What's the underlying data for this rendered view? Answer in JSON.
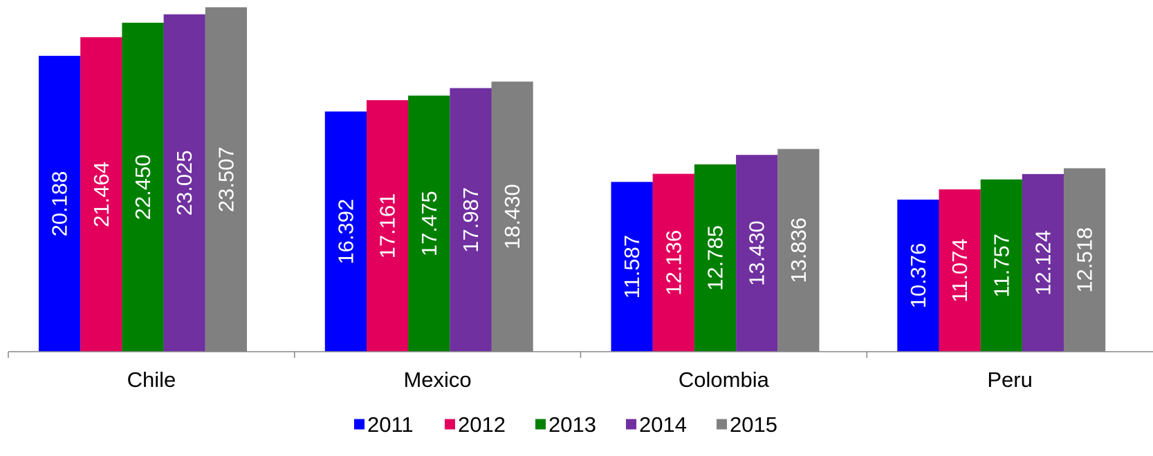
{
  "chart_data": {
    "type": "bar",
    "categories": [
      "Chile",
      "Mexico",
      "Colombia",
      "Peru"
    ],
    "series": [
      {
        "name": "2011",
        "color": "#0000ff",
        "values": [
          20.188,
          16.392,
          11.587,
          10.376
        ],
        "labels": [
          "20.188",
          "16.392",
          "11.587",
          "10.376"
        ]
      },
      {
        "name": "2012",
        "color": "#e3005c",
        "values": [
          21.464,
          17.161,
          12.136,
          11.074
        ],
        "labels": [
          "21.464",
          "17.161",
          "12.136",
          "11.074"
        ]
      },
      {
        "name": "2013",
        "color": "#008000",
        "values": [
          22.45,
          17.475,
          12.785,
          11.757
        ],
        "labels": [
          "22.450",
          "17.475",
          "12.785",
          "11.757"
        ]
      },
      {
        "name": "2014",
        "color": "#7030a0",
        "values": [
          23.025,
          17.987,
          13.43,
          12.124
        ],
        "labels": [
          "23.025",
          "17.987",
          "13.430",
          "12.124"
        ]
      },
      {
        "name": "2015",
        "color": "#808080",
        "values": [
          23.507,
          18.43,
          13.836,
          12.518
        ],
        "labels": [
          "23.507",
          "18.430",
          "13.836",
          "12.518"
        ]
      }
    ],
    "ylim": [
      0,
      24
    ],
    "grid": false,
    "legend_position": "bottom",
    "data_labels": "inside-rotated"
  }
}
